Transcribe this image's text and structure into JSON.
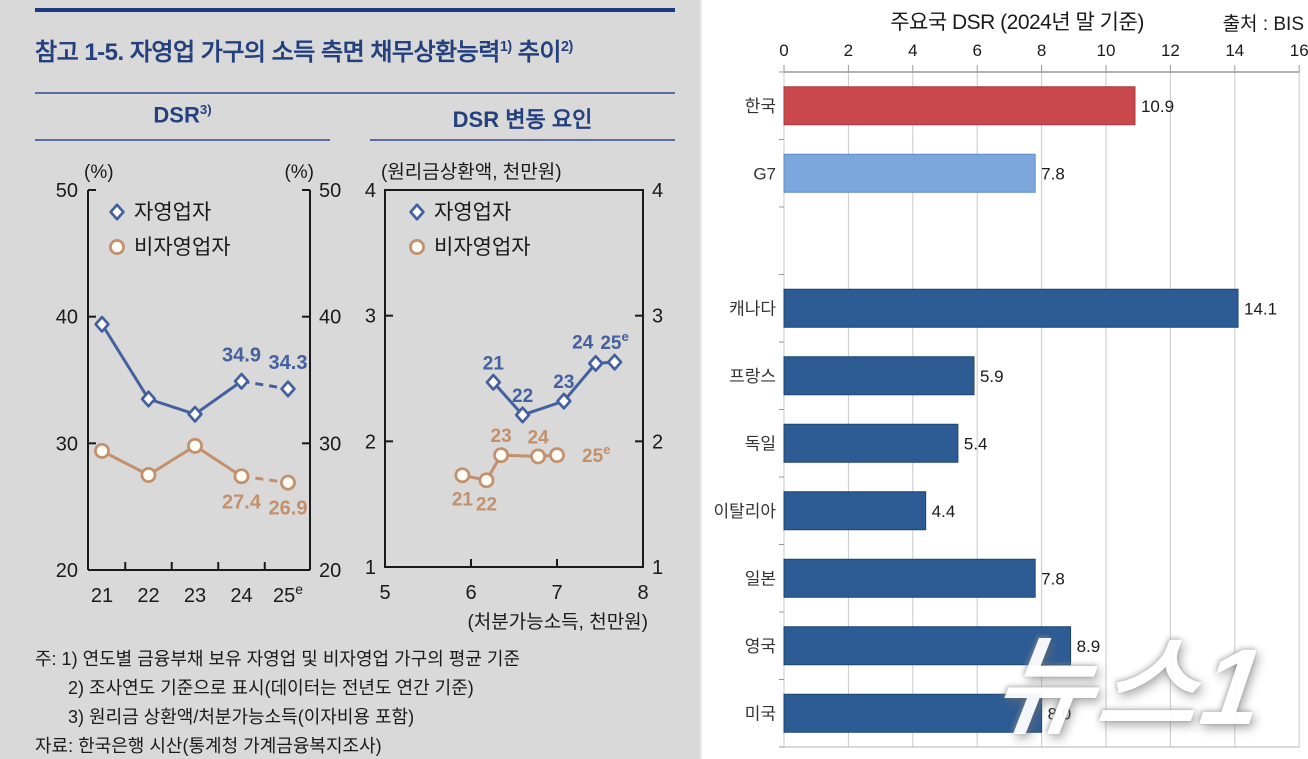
{
  "left_panel": {
    "title": {
      "main": "참고 1-5. 자영업 가구의 소득 측면 채무상환능력",
      "sup1": "1)",
      "tail": " 추이",
      "sup2": "2)"
    },
    "headers": {
      "left": "DSR",
      "left_sup": "3)",
      "right": "DSR 변동 요인"
    },
    "footnotes": [
      "주: 1) 연도별 금융부채 보유 자영업 및 비자영업 가구의 평균 기준",
      "2) 조사연도 기준으로 표시(데이터는 전년도 연간 기준)",
      "3) 원리금 상환액/처분가능소득(이자비용 포함)",
      "자료: 한국은행 시산(통계청 가계금융복지조사)"
    ]
  },
  "watermark": "뉴스1",
  "colors": {
    "navy_text": "#24417e",
    "self_employed_line": "#44609e",
    "non_self_employed_line": "#c2906c",
    "korea_bar": "#c9484d",
    "g7_bar": "#7ba7dc",
    "country_bar": "#2d5c94",
    "gridline": "#c9c9c9"
  },
  "chart_data": [
    {
      "id": "dsr-trend",
      "type": "line",
      "unit_left": "(%)",
      "unit_right": "(%)",
      "categories": [
        "21",
        "22",
        "23",
        "24",
        "25"
      ],
      "category_sup": [
        null,
        null,
        null,
        null,
        "e"
      ],
      "ylim": [
        20,
        50
      ],
      "yticks": [
        20,
        30,
        40,
        50
      ],
      "legend_position": "top-left",
      "series": [
        {
          "name": "자영업자",
          "marker": "diamond",
          "color": "#44609e",
          "values": [
            39.4,
            33.5,
            32.3,
            34.9,
            34.3
          ],
          "dashed_from": 3,
          "point_labels": [
            null,
            null,
            null,
            {
              "text": "34.9",
              "pos": "above"
            },
            {
              "text": "34.3",
              "pos": "above"
            }
          ]
        },
        {
          "name": "비자영업자",
          "marker": "circle",
          "color": "#c2906c",
          "values": [
            29.4,
            27.5,
            29.8,
            27.4,
            26.9
          ],
          "dashed_from": 3,
          "point_labels": [
            null,
            null,
            null,
            {
              "text": "27.4",
              "pos": "below"
            },
            {
              "text": "26.9",
              "pos": "below"
            }
          ]
        }
      ]
    },
    {
      "id": "dsr-factors",
      "type": "scatter-line",
      "title_top": "(원리금상환액, 천만원)",
      "xlabel": "(처분가능소득, 천만원)",
      "xlim": [
        5,
        8
      ],
      "ylim": [
        1,
        4
      ],
      "xticks": [
        5,
        6,
        7,
        8
      ],
      "yticks": [
        1,
        2,
        3,
        4
      ],
      "legend_position": "top-left",
      "series": [
        {
          "name": "자영업자",
          "marker": "diamond",
          "color": "#44609e",
          "points": [
            {
              "x": 6.26,
              "y": 2.47,
              "label": "21",
              "pos": "above"
            },
            {
              "x": 6.6,
              "y": 2.21,
              "label": "22",
              "pos": "above"
            },
            {
              "x": 7.08,
              "y": 2.32,
              "label": "23",
              "pos": "above"
            },
            {
              "x": 7.45,
              "y": 2.62,
              "label": "24",
              "pos": "above-left"
            },
            {
              "x": 7.67,
              "y": 2.63,
              "label": "25",
              "sup": "e",
              "pos": "above"
            }
          ]
        },
        {
          "name": "비자영업자",
          "marker": "circle",
          "color": "#c2906c",
          "points": [
            {
              "x": 5.9,
              "y": 1.73,
              "label": "21",
              "pos": "below"
            },
            {
              "x": 6.18,
              "y": 1.69,
              "label": "22",
              "pos": "below"
            },
            {
              "x": 6.35,
              "y": 1.89,
              "label": "23",
              "pos": "above"
            },
            {
              "x": 6.78,
              "y": 1.88,
              "label": "24",
              "pos": "above"
            },
            {
              "x": 7.0,
              "y": 1.89,
              "label": "25",
              "sup": "e",
              "pos": "right"
            }
          ]
        }
      ]
    },
    {
      "id": "country-dsr",
      "type": "bar",
      "title": "주요국 DSR (2024년 말 기준)",
      "source": "출처 : BIS",
      "orientation": "horizontal",
      "xlim": [
        0,
        16
      ],
      "xticks": [
        0,
        2,
        4,
        6,
        8,
        10,
        12,
        14,
        16
      ],
      "categories": [
        "한국",
        "G7",
        "",
        "캐나다",
        "프랑스",
        "독일",
        "이탈리아",
        "일본",
        "영국",
        "미국"
      ],
      "values": [
        10.9,
        7.8,
        null,
        14.1,
        5.9,
        5.4,
        4.4,
        7.8,
        8.9,
        8.0
      ],
      "value_labels": [
        "10.9",
        "7.8",
        "",
        "14.1",
        "5.9",
        "5.4",
        "4.4",
        "7.8",
        "8.9",
        "8.0"
      ],
      "bar_colors": [
        "#c9484d",
        "#7ba7dc",
        "",
        "#2d5c94",
        "#2d5c94",
        "#2d5c94",
        "#2d5c94",
        "#2d5c94",
        "#2d5c94",
        "#2d5c94"
      ],
      "bar_border_colors": [
        "#a83a3f",
        "#5d8cc9",
        "",
        "#1d4472",
        "#1d4472",
        "#1d4472",
        "#1d4472",
        "#1d4472",
        "#1d4472",
        "#1d4472"
      ]
    }
  ]
}
